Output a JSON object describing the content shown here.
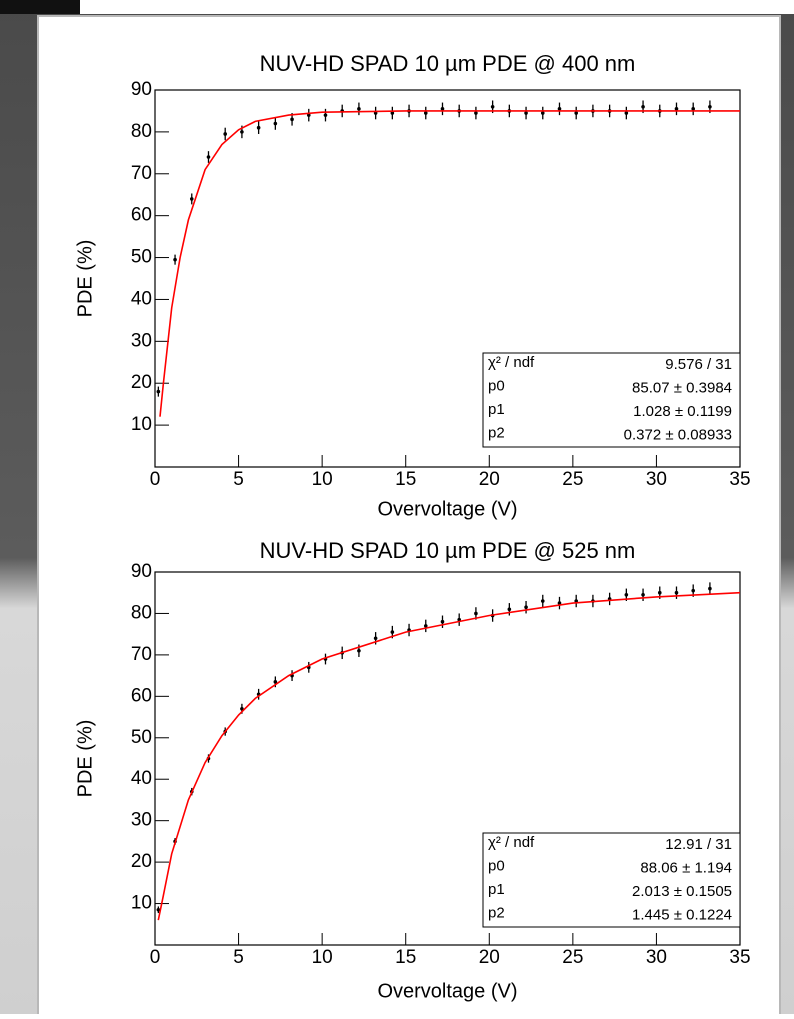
{
  "chart_data": [
    {
      "type": "scatter",
      "title": "NUV-HD SPAD 10 µm PDE @ 400 nm",
      "x_label": "Overvoltage (V)",
      "y_label": "PDE (%)",
      "xlim": [
        0,
        35
      ],
      "xticks": [
        0,
        5,
        10,
        15,
        20,
        25,
        30,
        35
      ],
      "ylim": [
        0,
        90
      ],
      "yticks": [
        10,
        20,
        30,
        40,
        50,
        60,
        70,
        80,
        90
      ],
      "series": [
        {
          "type": "scatter",
          "color": "#000000",
          "x": [
            0.2,
            1.2,
            2.2,
            3.2,
            4.2,
            5.2,
            6.2,
            7.2,
            8.2,
            9.2,
            10.2,
            11.2,
            12.2,
            13.2,
            14.2,
            15.2,
            16.2,
            17.2,
            18.2,
            19.2,
            20.2,
            21.2,
            22.2,
            23.2,
            24.2,
            25.2,
            26.2,
            27.2,
            28.2,
            29.2,
            30.2,
            31.2,
            32.2,
            33.2
          ],
          "values": [
            18,
            49.5,
            64,
            74,
            79.5,
            80,
            81,
            82,
            83,
            84,
            84,
            85,
            85.5,
            84.5,
            84.5,
            85,
            84.5,
            85.5,
            85,
            84.5,
            86,
            85,
            84.5,
            84.5,
            85.5,
            84.5,
            85,
            85,
            84.5,
            86,
            85,
            85.5,
            85.5,
            86
          ],
          "errors": [
            1.2,
            1.2,
            1.3,
            1.4,
            1.5,
            1.5,
            1.5,
            1.5,
            1.5,
            1.5,
            1.5,
            1.5,
            1.5,
            1.5,
            1.5,
            1.5,
            1.5,
            1.5,
            1.5,
            1.5,
            1.5,
            1.5,
            1.5,
            1.5,
            1.5,
            1.5,
            1.5,
            1.5,
            1.5,
            1.5,
            1.5,
            1.5,
            1.5,
            1.5
          ]
        },
        {
          "type": "line",
          "color": "#ff0000",
          "x": [
            0.3,
            0.5,
            1,
            1.5,
            2,
            3,
            4,
            5,
            6,
            8,
            10,
            15,
            20,
            25,
            30,
            35
          ],
          "values": [
            12,
            20,
            38,
            50,
            59,
            71,
            77,
            80.5,
            82.5,
            84,
            84.7,
            85,
            85,
            85,
            85,
            85
          ]
        }
      ],
      "stats": [
        [
          "χ² / ndf",
          "9.576 / 31"
        ],
        [
          "p0",
          "85.07 ± 0.3984"
        ],
        [
          "p1",
          "1.028 ± 0.1199"
        ],
        [
          "p2",
          "0.372 ± 0.08933"
        ]
      ]
    },
    {
      "type": "scatter",
      "title": "NUV-HD SPAD 10 µm PDE @ 525 nm",
      "x_label": "Overvoltage (V)",
      "y_label": "PDE (%)",
      "xlim": [
        0,
        35
      ],
      "xticks": [
        0,
        5,
        10,
        15,
        20,
        25,
        30,
        35
      ],
      "ylim": [
        0,
        90
      ],
      "yticks": [
        10,
        20,
        30,
        40,
        50,
        60,
        70,
        80,
        90
      ],
      "series": [
        {
          "type": "scatter",
          "color": "#000000",
          "x": [
            0.2,
            1.2,
            2.2,
            3.2,
            4.2,
            5.2,
            6.2,
            7.2,
            8.2,
            9.2,
            10.2,
            11.2,
            12.2,
            13.2,
            14.2,
            15.2,
            16.2,
            17.2,
            18.2,
            19.2,
            20.2,
            21.2,
            22.2,
            23.2,
            24.2,
            25.2,
            26.2,
            27.2,
            28.2,
            29.2,
            30.2,
            31.2,
            32.2,
            33.2
          ],
          "values": [
            8.5,
            25,
            37,
            45,
            51.5,
            57,
            60.5,
            63.5,
            65,
            67,
            69,
            70.5,
            71,
            74,
            75.5,
            76,
            77,
            78,
            78.5,
            80,
            79.5,
            81,
            81.5,
            83,
            82.5,
            83,
            83,
            83.5,
            84.5,
            84.5,
            85,
            85,
            85.5,
            86
          ],
          "errors": [
            0.8,
            0.8,
            0.9,
            1,
            1,
            1.2,
            1.3,
            1.3,
            1.3,
            1.3,
            1.3,
            1.5,
            1.5,
            1.5,
            1.5,
            1.5,
            1.5,
            1.5,
            1.5,
            1.5,
            1.5,
            1.5,
            1.5,
            1.5,
            1.5,
            1.5,
            1.5,
            1.5,
            1.5,
            1.5,
            1.5,
            1.5,
            1.5,
            1.5
          ]
        },
        {
          "type": "line",
          "color": "#ff0000",
          "x": [
            0.2,
            0.5,
            1,
            2,
            3,
            4,
            5,
            6,
            8,
            10,
            15,
            20,
            25,
            30,
            35
          ],
          "values": [
            6,
            12,
            22,
            35,
            44,
            50.5,
            55.5,
            59.5,
            65,
            69,
            75.5,
            79.5,
            82.5,
            84,
            85
          ]
        }
      ],
      "stats": [
        [
          "χ² / ndf",
          "12.91 / 31"
        ],
        [
          "p0",
          "88.06 ± 1.194"
        ],
        [
          "p1",
          "2.013 ± 0.1505"
        ],
        [
          "p2",
          "1.445 ± 0.1224"
        ]
      ]
    }
  ]
}
